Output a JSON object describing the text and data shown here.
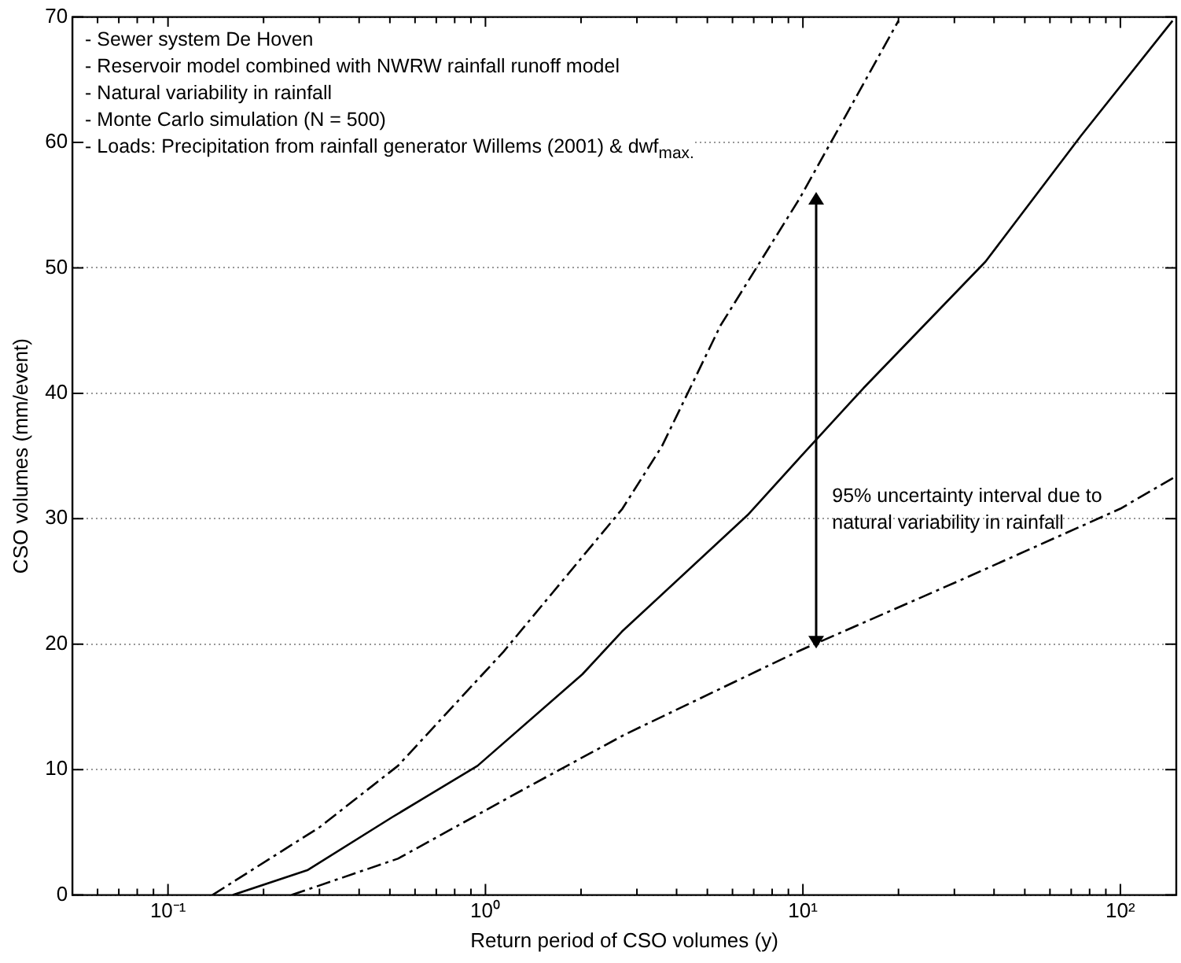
{
  "chart_data": {
    "type": "line",
    "xlabel": "Return period of CSO volumes (y)",
    "ylabel": "CSO volumes (mm/event)",
    "log": "x",
    "grid": "y",
    "legend": false,
    "marker": "none",
    "xlim": [
      0.05,
      150
    ],
    "ylim": [
      0,
      70
    ],
    "xticks": [
      {
        "value": 0.06,
        "label": null
      },
      {
        "value": 0.07,
        "label": null
      },
      {
        "value": 0.08,
        "label": null
      },
      {
        "value": 0.09,
        "label": null
      },
      {
        "value": 0.1,
        "label": "10⁻¹"
      },
      {
        "value": 0.2,
        "label": null
      },
      {
        "value": 0.3,
        "label": null
      },
      {
        "value": 0.4,
        "label": null
      },
      {
        "value": 0.5,
        "label": null
      },
      {
        "value": 0.6,
        "label": null
      },
      {
        "value": 0.7,
        "label": null
      },
      {
        "value": 0.8,
        "label": null
      },
      {
        "value": 0.9,
        "label": null
      },
      {
        "value": 1,
        "label": "10⁰"
      },
      {
        "value": 2,
        "label": null
      },
      {
        "value": 3,
        "label": null
      },
      {
        "value": 4,
        "label": null
      },
      {
        "value": 5,
        "label": null
      },
      {
        "value": 6,
        "label": null
      },
      {
        "value": 7,
        "label": null
      },
      {
        "value": 8,
        "label": null
      },
      {
        "value": 9,
        "label": null
      },
      {
        "value": 10,
        "label": "10¹"
      },
      {
        "value": 20,
        "label": null
      },
      {
        "value": 30,
        "label": null
      },
      {
        "value": 40,
        "label": null
      },
      {
        "value": 50,
        "label": null
      },
      {
        "value": 60,
        "label": null
      },
      {
        "value": 70,
        "label": null
      },
      {
        "value": 80,
        "label": null
      },
      {
        "value": 90,
        "label": null
      },
      {
        "value": 100,
        "label": "10²"
      }
    ],
    "yticks": [
      0,
      10,
      20,
      30,
      40,
      50,
      60,
      70
    ],
    "series": [
      {
        "color": "#000000",
        "line_style": "solid",
        "x": [
          0.16,
          0.276,
          0.508,
          0.944,
          2.02,
          2.69,
          6.7,
          9.8,
          15.5,
          37.6,
          75,
          146
        ],
        "values": [
          0,
          2.0,
          6.2,
          10.3,
          17.6,
          21.0,
          30.3,
          34.9,
          40.4,
          50.5,
          60.5,
          69.7
        ]
      },
      {
        "color": "#000000",
        "line_style": "dashed",
        "x": [
          0.138,
          0.3,
          0.53,
          1.14,
          2.7,
          3.6,
          5.5,
          9.8,
          20
        ],
        "values": [
          0,
          5.4,
          10.3,
          19.4,
          30.8,
          35.8,
          45.4,
          55.6,
          69.7
        ]
      },
      {
        "color": "#000000",
        "line_style": "dashed",
        "x": [
          0.245,
          0.53,
          1.38,
          2.75,
          9.8,
          32,
          100,
          150
        ],
        "values": [
          0,
          2.9,
          8.7,
          12.8,
          19.5,
          25.2,
          30.8,
          33.4
        ]
      }
    ],
    "annotations": [
      "- Sewer system De Hoven",
      "- Reservoir model combined with NWRW rainfall runoff model",
      "- Natural variability in rainfall",
      "- Monte Carlo simulation (N = 500)",
      "- Loads: Precipitation from rainfall generator Willems (2001) & dwf$_{max.}$",
      "95% uncertainty interval due to natural variability in rainfall"
    ]
  }
}
